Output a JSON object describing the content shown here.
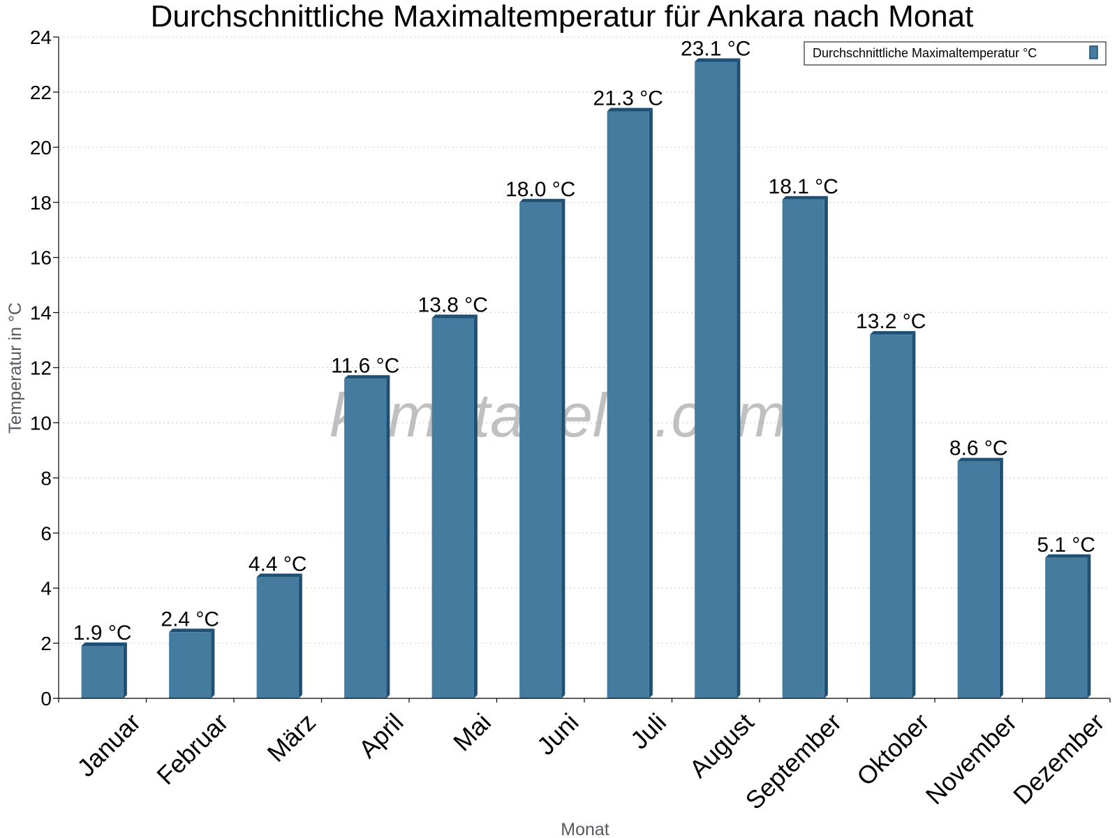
{
  "chart_data": {
    "type": "bar",
    "title": "Durchschnittliche Maximaltemperatur für Ankara nach Monat",
    "xlabel": "Monat",
    "ylabel": "Temperatur in °C",
    "ylim": [
      0,
      24
    ],
    "yticks": [
      0,
      2,
      4,
      6,
      8,
      10,
      12,
      14,
      16,
      18,
      20,
      22,
      24
    ],
    "grid": true,
    "legend_position": "top-right",
    "categories": [
      "Januar",
      "Februar",
      "März",
      "April",
      "Mai",
      "Juni",
      "Juli",
      "August",
      "September",
      "Oktober",
      "November",
      "Dezember"
    ],
    "series": [
      {
        "name": "Durchschnittliche Maximaltemperatur °C",
        "values": [
          1.9,
          2.4,
          4.4,
          11.6,
          13.8,
          18.0,
          21.3,
          23.1,
          18.1,
          13.2,
          8.6,
          5.1
        ],
        "labels": [
          "1.9 °C",
          "2.4 °C",
          "4.4 °C",
          "11.6 °C",
          "13.8 °C",
          "18.0 °C",
          "21.3 °C",
          "23.1 °C",
          "18.1 °C",
          "13.2 °C",
          "8.6 °C",
          "5.1 °C"
        ]
      }
    ],
    "colors": {
      "bar": "#447b9f",
      "bar_dark": "#1f4f72"
    },
    "watermark": "klimatabelle.com"
  }
}
